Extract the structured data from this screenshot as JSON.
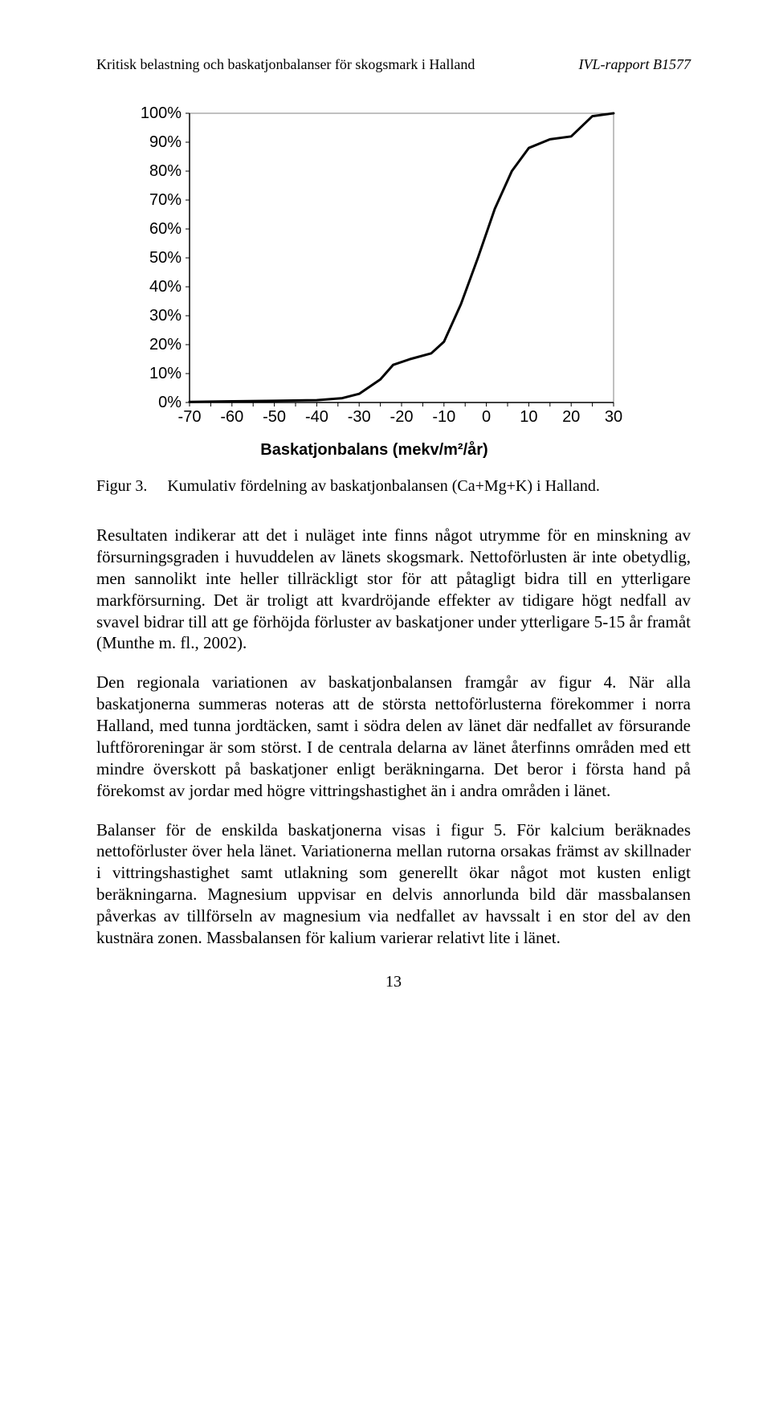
{
  "header": {
    "left": "Kritisk belastning och baskatjonbalanser för skogsmark i Halland",
    "right": "IVL-rapport B1577"
  },
  "chart": {
    "type": "line",
    "xlabel": "Baskatjonbalans (mekv/m²/år)",
    "xlim": [
      -70,
      30
    ],
    "ylim": [
      0,
      100
    ],
    "x_ticks": [
      -70,
      -60,
      -50,
      -40,
      -30,
      -20,
      -10,
      0,
      10,
      20,
      30
    ],
    "x_tick_labels": [
      "-70",
      "-60",
      "-50",
      "-40",
      "-30",
      "-20",
      "-10",
      "0",
      "10",
      "20",
      "30"
    ],
    "x_minor_step": 5,
    "y_ticks": [
      0,
      10,
      20,
      30,
      40,
      50,
      60,
      70,
      80,
      90,
      100
    ],
    "y_labels": [
      "0%",
      "10%",
      "20%",
      "30%",
      "40%",
      "50%",
      "60%",
      "70%",
      "80%",
      "90%",
      "100%"
    ],
    "line_color": "#000000",
    "line_width": 3,
    "axis_color": "#000000",
    "tick_color": "#000000",
    "plot_border_color": "#808080",
    "plot_background": "#ffffff",
    "background": "#ffffff",
    "y_tick_fontsize": 20,
    "x_tick_fontsize": 20,
    "xlabel_fontsize": 20,
    "font_family": "Arial",
    "data_x": [
      -70,
      -60,
      -50,
      -40,
      -34,
      -30,
      -25,
      -22,
      -18,
      -13,
      -10,
      -6,
      -2,
      2,
      6,
      10,
      15,
      20,
      25,
      30
    ],
    "data_y": [
      0.2,
      0.4,
      0.6,
      0.8,
      1.5,
      3,
      8,
      13,
      15,
      17,
      21,
      34,
      50,
      67,
      80,
      88,
      91,
      92,
      99,
      100
    ]
  },
  "caption": {
    "label": "Figur 3.",
    "text": "Kumulativ fördelning av baskatjonbalansen (Ca+Mg+K) i Halland."
  },
  "body": {
    "p1": "Resultaten indikerar att det i nuläget inte finns något utrymme för en minskning av försurningsgraden i huvuddelen av länets skogsmark. Nettoförlusten är inte obetydlig, men sannolikt inte heller tillräckligt stor för att påtagligt bidra till en ytterligare markförsurning. Det är troligt att kvardröjande effekter av tidigare högt nedfall av svavel bidrar till att ge förhöjda förluster av baskatjoner under ytterligare 5-15 år framåt (Munthe m. fl., 2002).",
    "p2": "Den regionala variationen av baskatjonbalansen framgår av figur 4. När alla baskatjonerna summeras noteras att de största nettoförlusterna förekommer i norra Halland, med tunna jordtäcken, samt i södra delen av länet där nedfallet av försurande luftföroreningar är som störst. I de centrala delarna av länet återfinns områden med ett mindre överskott på baskatjoner enligt beräkningarna. Det beror i första hand på förekomst av jordar med högre vittringshastighet än i andra områden i länet.",
    "p3": "Balanser för de enskilda baskatjonerna visas i figur 5. För kalcium beräknades nettoförluster över hela länet. Variationerna mellan rutorna orsakas främst av skillnader i vittringshastighet samt utlakning som generellt ökar något mot kusten enligt beräkningarna. Magnesium uppvisar en delvis annorlunda bild där massbalansen påverkas av tillförseln av magnesium via nedfallet av havssalt i en stor del av den kustnära zonen. Massbalansen för kalium varierar relativt lite i länet."
  },
  "footer": {
    "page_number": "13"
  }
}
